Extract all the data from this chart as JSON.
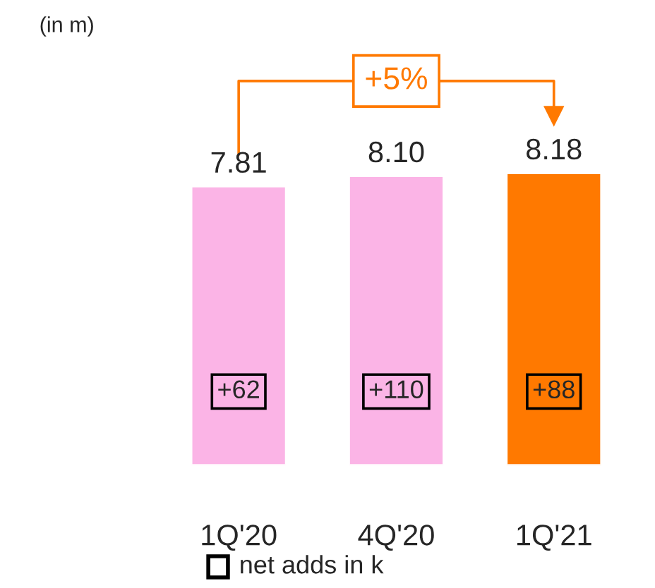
{
  "chart_data": {
    "type": "bar",
    "categories": [
      "1Q'20",
      "4Q'20",
      "1Q'21"
    ],
    "values": [
      7.81,
      8.1,
      8.18
    ],
    "value_labels": [
      "7.81",
      "8.10",
      "8.18"
    ],
    "colors": [
      "#fbb4e6",
      "#fbb4e6",
      "#ff7900"
    ],
    "tick_labels": "x",
    "annotations": [
      "(in m)",
      "+5%",
      "+62",
      "+110",
      "+88",
      "net adds in k"
    ]
  }
}
